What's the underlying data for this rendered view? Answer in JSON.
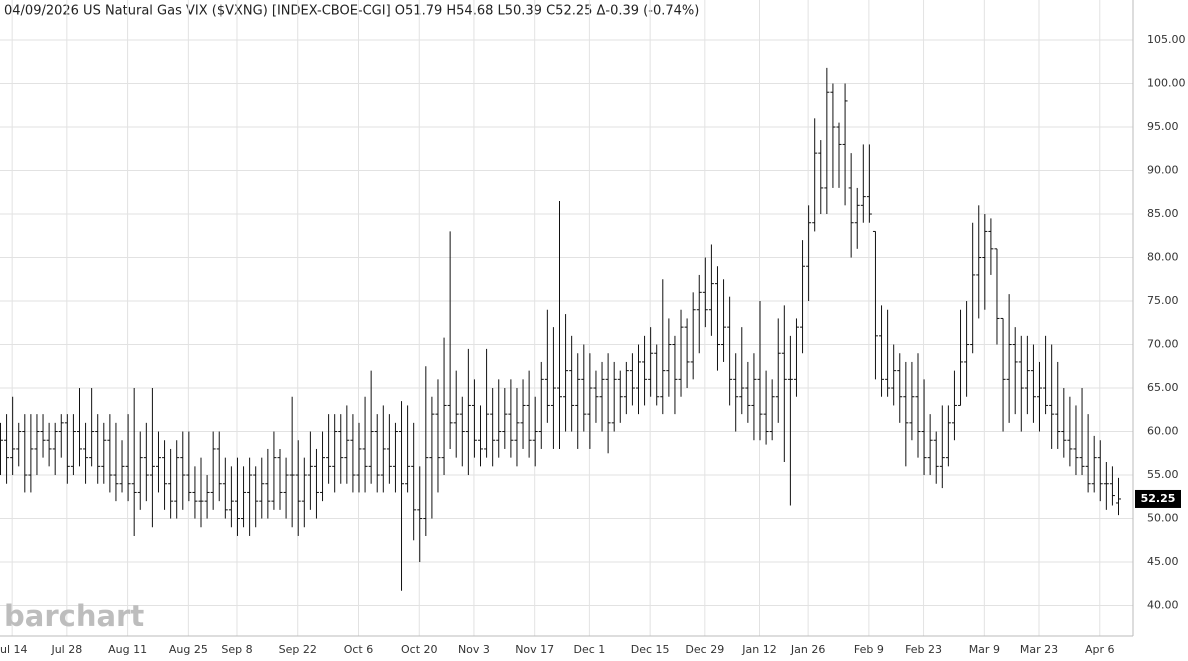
{
  "chart_data": {
    "type": "ohlc",
    "title": "04/09/2026 US Natural Gas VIX ($VXNG) [INDEX-CBOE-CGI] O51.79 H54.68 L50.39 C52.25 Δ-0.39 (-0.74%)",
    "watermark": "barchart",
    "color": "#111111",
    "grid": true,
    "ylim": [
      36.5,
      109.6
    ],
    "yticks": [
      {
        "value": 40,
        "label": "40.00"
      },
      {
        "value": 45,
        "label": "45.00"
      },
      {
        "value": 50,
        "label": "50.00"
      },
      {
        "value": 55,
        "label": "55.00"
      },
      {
        "value": 60,
        "label": "60.00"
      },
      {
        "value": 65,
        "label": "65.00"
      },
      {
        "value": 70,
        "label": "70.00"
      },
      {
        "value": 75,
        "label": "75.00"
      },
      {
        "value": 80,
        "label": "80.00"
      },
      {
        "value": 85,
        "label": "85.00"
      },
      {
        "value": 90,
        "label": "90.00"
      },
      {
        "value": 95,
        "label": "95.00"
      },
      {
        "value": 100,
        "label": "100.00"
      },
      {
        "value": 105,
        "label": "105.00"
      }
    ],
    "categories": [
      null,
      null,
      "Jul 14",
      null,
      null,
      null,
      null,
      null,
      null,
      null,
      null,
      "Jul 28",
      null,
      null,
      null,
      null,
      null,
      null,
      null,
      null,
      null,
      "Aug 11",
      null,
      null,
      null,
      null,
      null,
      null,
      null,
      null,
      null,
      "Aug 25",
      null,
      null,
      null,
      null,
      null,
      null,
      null,
      "Sep 8",
      null,
      null,
      null,
      null,
      null,
      null,
      null,
      null,
      null,
      "Sep 22",
      null,
      null,
      null,
      null,
      null,
      null,
      null,
      null,
      null,
      "Oct 6",
      null,
      null,
      null,
      null,
      null,
      null,
      null,
      null,
      null,
      "Oct 20",
      null,
      null,
      null,
      null,
      null,
      null,
      null,
      null,
      "Nov 3",
      null,
      null,
      null,
      null,
      null,
      null,
      null,
      null,
      null,
      "Nov 17",
      null,
      null,
      null,
      null,
      null,
      null,
      null,
      null,
      "Dec 1",
      null,
      null,
      null,
      null,
      null,
      null,
      null,
      null,
      null,
      "Dec 15",
      null,
      null,
      null,
      null,
      null,
      null,
      null,
      null,
      "Dec 29",
      null,
      null,
      null,
      null,
      null,
      null,
      null,
      null,
      "Jan 12",
      null,
      null,
      null,
      null,
      null,
      null,
      null,
      "Jan 26",
      null,
      null,
      null,
      null,
      null,
      null,
      null,
      null,
      null,
      "Feb 9",
      null,
      null,
      null,
      null,
      null,
      null,
      null,
      null,
      "Feb 23",
      null,
      null,
      null,
      null,
      null,
      null,
      null,
      null,
      null,
      "Mar 9",
      null,
      null,
      null,
      null,
      null,
      null,
      null,
      null,
      "Mar 23",
      null,
      null,
      null,
      null,
      null,
      null,
      null,
      null,
      null,
      "Apr 6",
      null,
      null,
      null
    ],
    "ohlc": [
      [
        58,
        61,
        55,
        59
      ],
      [
        59,
        62,
        54,
        57
      ],
      [
        57,
        64,
        55,
        58
      ],
      [
        58,
        61,
        56,
        60
      ],
      [
        60,
        62,
        53,
        55
      ],
      [
        55,
        62,
        53,
        58
      ],
      [
        58,
        62,
        55,
        60
      ],
      [
        60,
        62,
        57,
        59
      ],
      [
        59,
        61,
        56,
        58
      ],
      [
        58,
        61,
        55,
        60
      ],
      [
        60,
        62,
        57,
        61
      ],
      [
        61,
        62,
        54,
        56
      ],
      [
        56,
        62,
        55,
        60
      ],
      [
        60,
        65,
        56,
        58
      ],
      [
        58,
        61,
        54,
        57
      ],
      [
        57,
        65,
        56,
        60
      ],
      [
        60,
        62,
        54,
        56
      ],
      [
        56,
        61,
        54,
        59
      ],
      [
        59,
        62,
        53,
        55
      ],
      [
        55,
        61,
        52,
        54
      ],
      [
        54,
        59,
        53,
        56
      ],
      [
        56,
        62,
        52,
        54
      ],
      [
        54,
        65,
        48,
        53
      ],
      [
        53,
        60,
        51,
        57
      ],
      [
        57,
        61,
        52,
        55
      ],
      [
        55,
        65,
        49,
        56
      ],
      [
        56,
        60,
        53,
        57
      ],
      [
        57,
        59,
        51,
        54
      ],
      [
        54,
        58,
        50,
        52
      ],
      [
        52,
        59,
        50,
        57
      ],
      [
        57,
        60,
        51,
        55
      ],
      [
        55,
        60,
        52,
        53
      ],
      [
        53,
        56,
        50,
        52
      ],
      [
        52,
        57,
        49,
        52
      ],
      [
        52,
        55,
        50,
        53
      ],
      [
        53,
        60,
        51,
        58
      ],
      [
        58,
        60,
        52,
        54
      ],
      [
        54,
        57,
        50,
        51
      ],
      [
        51,
        56,
        49,
        52
      ],
      [
        52,
        57,
        48,
        50
      ],
      [
        50,
        56,
        49,
        53
      ],
      [
        53,
        57,
        48,
        55
      ],
      [
        55,
        56,
        49,
        52
      ],
      [
        52,
        57,
        50,
        54
      ],
      [
        54,
        58,
        50,
        52
      ],
      [
        52,
        60,
        51,
        57
      ],
      [
        57,
        58,
        51,
        53
      ],
      [
        53,
        57,
        50,
        55
      ],
      [
        55,
        64,
        49,
        55
      ],
      [
        55,
        59,
        48,
        52
      ],
      [
        52,
        57,
        49,
        55
      ],
      [
        55,
        60,
        51,
        56
      ],
      [
        56,
        58,
        50,
        53
      ],
      [
        53,
        60,
        52,
        57
      ],
      [
        57,
        62,
        54,
        56
      ],
      [
        56,
        62,
        53,
        60
      ],
      [
        60,
        62,
        54,
        57
      ],
      [
        57,
        63,
        54,
        59
      ],
      [
        59,
        62,
        53,
        55
      ],
      [
        55,
        61,
        53,
        58
      ],
      [
        58,
        64,
        53,
        56
      ],
      [
        56,
        67,
        54,
        60
      ],
      [
        60,
        62,
        53,
        55
      ],
      [
        55,
        63,
        53,
        58
      ],
      [
        58,
        62,
        54,
        56
      ],
      [
        56,
        61,
        53,
        60
      ],
      [
        60,
        63.5,
        41.7,
        54
      ],
      [
        54,
        63,
        53,
        56
      ],
      [
        56,
        61,
        47.5,
        51
      ],
      [
        51,
        56,
        45,
        50
      ],
      [
        50,
        67.5,
        48,
        57
      ],
      [
        57,
        64,
        50,
        62
      ],
      [
        62,
        66,
        53,
        57
      ],
      [
        57,
        70.8,
        55,
        63
      ],
      [
        63,
        83,
        58,
        61
      ],
      [
        61,
        67,
        57,
        62
      ],
      [
        62,
        64,
        56,
        60
      ],
      [
        60,
        69.5,
        55,
        63
      ],
      [
        63,
        66,
        57,
        59
      ],
      [
        59,
        63,
        56,
        58
      ],
      [
        58,
        69.5,
        57,
        62
      ],
      [
        62,
        65,
        56,
        59
      ],
      [
        59,
        66,
        57,
        60
      ],
      [
        60,
        65,
        58,
        62
      ],
      [
        62,
        66,
        57,
        59
      ],
      [
        59,
        65,
        56,
        61
      ],
      [
        61,
        66,
        58,
        63
      ],
      [
        63,
        67,
        57,
        59
      ],
      [
        59,
        64,
        56,
        60
      ],
      [
        60,
        68,
        58,
        66
      ],
      [
        66,
        74,
        61,
        63
      ],
      [
        63,
        72,
        58,
        65
      ],
      [
        65,
        86.5,
        58,
        64
      ],
      [
        64,
        73.5,
        60,
        67
      ],
      [
        67,
        71,
        60,
        63
      ],
      [
        63,
        69,
        58,
        66
      ],
      [
        66,
        70,
        60,
        62
      ],
      [
        62,
        69,
        58,
        65
      ],
      [
        65,
        67,
        61,
        64
      ],
      [
        64,
        68,
        60,
        66
      ],
      [
        66,
        69,
        57.5,
        61
      ],
      [
        61,
        68,
        60,
        66
      ],
      [
        66,
        67,
        61,
        64
      ],
      [
        64,
        68,
        62,
        67
      ],
      [
        67,
        69,
        63,
        65
      ],
      [
        65,
        70,
        62,
        68
      ],
      [
        68,
        71,
        63,
        66
      ],
      [
        66,
        72,
        64,
        69
      ],
      [
        69,
        70,
        63,
        64
      ],
      [
        64,
        77.5,
        62,
        67
      ],
      [
        67,
        73,
        64,
        70
      ],
      [
        70,
        71,
        62,
        66
      ],
      [
        66,
        74,
        64,
        72
      ],
      [
        72,
        73,
        65,
        68
      ],
      [
        68,
        76,
        66,
        74
      ],
      [
        74,
        78,
        69,
        76
      ],
      [
        76,
        80,
        72,
        74
      ],
      [
        74,
        81.5,
        71,
        77
      ],
      [
        77,
        79,
        67,
        70
      ],
      [
        70,
        77.5,
        68,
        72
      ],
      [
        72,
        75.5,
        63,
        66
      ],
      [
        66,
        69,
        60,
        64
      ],
      [
        64,
        72,
        62,
        65
      ],
      [
        65,
        68,
        61,
        63
      ],
      [
        63,
        69,
        59,
        66
      ],
      [
        66,
        75,
        59,
        62
      ],
      [
        62,
        67,
        58.5,
        60
      ],
      [
        60,
        66,
        59,
        64
      ],
      [
        64,
        73,
        61,
        69
      ],
      [
        69,
        74.5,
        56.5,
        66
      ],
      [
        66,
        71,
        51.5,
        66
      ],
      [
        66,
        73,
        64,
        72
      ],
      [
        72,
        82,
        69,
        79
      ],
      [
        79,
        86,
        75,
        84
      ],
      [
        84,
        96,
        83,
        92
      ],
      [
        92,
        93.5,
        85,
        88
      ],
      [
        88,
        101.8,
        85,
        99
      ],
      [
        99,
        100,
        88,
        95
      ],
      [
        95,
        95.5,
        88,
        93
      ],
      [
        93,
        100,
        86,
        98
      ],
      [
        88,
        92,
        80,
        84
      ],
      [
        84,
        88,
        81,
        86
      ],
      [
        86,
        93,
        84,
        87
      ],
      [
        87,
        93,
        84,
        85
      ],
      [
        83,
        83,
        66,
        71
      ],
      [
        71,
        74.5,
        64,
        66
      ],
      [
        66,
        74,
        64,
        65
      ],
      [
        65,
        70,
        63,
        67
      ],
      [
        67,
        69,
        61,
        64
      ],
      [
        64,
        68,
        56,
        61
      ],
      [
        61,
        68,
        59,
        64
      ],
      [
        64,
        69,
        57,
        60
      ],
      [
        60,
        66,
        55,
        57
      ],
      [
        57,
        62,
        55,
        59
      ],
      [
        59,
        60,
        54,
        56
      ],
      [
        56,
        63,
        53.5,
        57
      ],
      [
        57,
        63,
        56,
        61
      ],
      [
        61,
        67,
        59,
        63
      ],
      [
        63,
        74,
        63,
        68
      ],
      [
        68,
        75,
        64,
        70
      ],
      [
        70,
        84,
        69,
        78
      ],
      [
        78,
        86,
        73,
        80
      ],
      [
        80,
        85,
        74,
        83
      ],
      [
        83,
        84.5,
        78,
        81
      ],
      [
        81,
        81,
        70,
        73
      ],
      [
        73,
        73,
        60,
        66
      ],
      [
        66,
        75.8,
        61,
        70
      ],
      [
        70,
        72,
        62,
        68
      ],
      [
        68,
        71,
        60,
        65
      ],
      [
        65,
        71,
        62,
        67
      ],
      [
        67,
        70,
        61,
        64
      ],
      [
        64,
        68,
        60,
        65
      ],
      [
        65,
        71,
        62,
        63
      ],
      [
        63,
        70,
        58,
        62
      ],
      [
        62,
        68,
        58,
        60
      ],
      [
        60,
        65,
        57,
        59
      ],
      [
        59,
        64,
        56,
        58
      ],
      [
        58,
        63,
        55,
        57
      ],
      [
        57,
        65,
        55,
        56
      ],
      [
        56,
        62,
        53,
        54
      ],
      [
        54,
        59.5,
        53,
        57
      ],
      [
        57,
        59,
        52,
        54
      ],
      [
        54,
        56.5,
        51,
        54
      ],
      [
        54,
        56,
        51.5,
        52.64
      ],
      [
        51.79,
        54.68,
        50.39,
        52.25
      ]
    ]
  }
}
